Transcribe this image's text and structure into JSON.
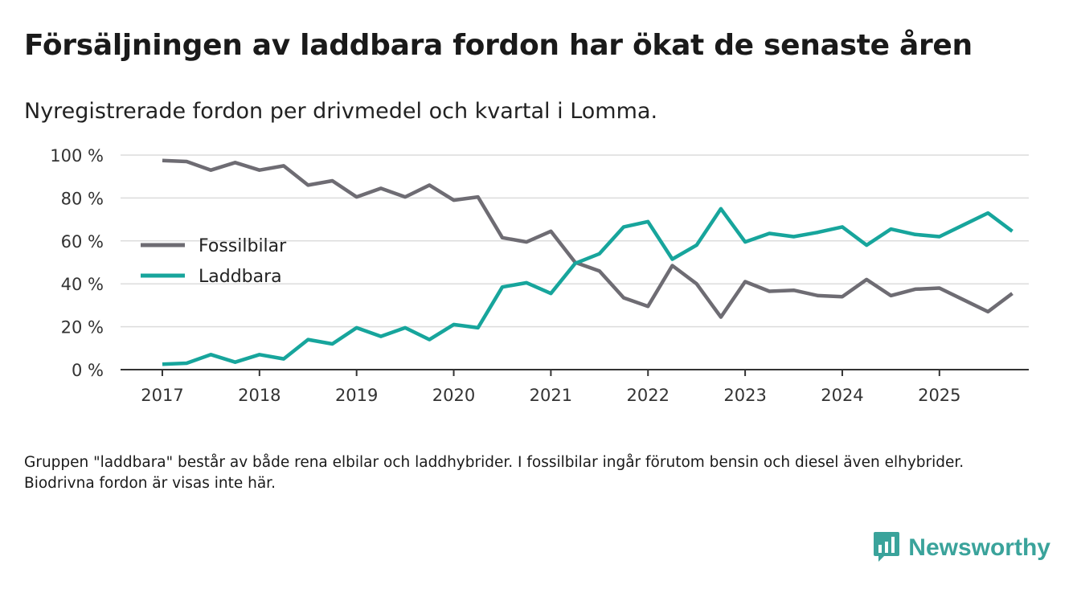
{
  "title": "Försäljningen av laddbara fordon har ökat de senaste åren",
  "subtitle": "Nyregistrerade fordon per drivmedel och kvartal i Lomma.",
  "footnote": "Gruppen \"laddbara\" består av både rena elbilar och laddhybrider. I fossilbilar ingår förutom bensin och diesel även elhybrider. Biodrivna fordon är visas inte här.",
  "brand": {
    "name": "Newsworthy",
    "icon": "bar-chart-icon"
  },
  "colors": {
    "fossil": "#6e6c73",
    "laddbara": "#17a59c",
    "grid": "#dcdcdc",
    "axis": "#333333"
  },
  "chart_data": {
    "type": "line",
    "title": "Försäljningen av laddbara fordon har ökat de senaste åren",
    "subtitle": "Nyregistrerade fordon per drivmedel och kvartal i Lomma.",
    "xlabel": "",
    "ylabel": "",
    "x": [
      2017.0,
      2017.25,
      2017.5,
      2017.75,
      2018.0,
      2018.25,
      2018.5,
      2018.75,
      2019.0,
      2019.25,
      2019.5,
      2019.75,
      2020.0,
      2020.25,
      2020.5,
      2020.75,
      2021.0,
      2021.25,
      2021.5,
      2021.75,
      2022.0,
      2022.25,
      2022.5,
      2022.75,
      2023.0,
      2023.25,
      2023.5,
      2023.75,
      2024.0,
      2024.25,
      2024.5,
      2024.75,
      2025.0,
      2025.25,
      2025.5,
      2025.75
    ],
    "xlim": [
      2016.57,
      2025.92
    ],
    "x_ticks": [
      2017,
      2018,
      2019,
      2020,
      2021,
      2022,
      2023,
      2024,
      2025
    ],
    "x_tick_labels": [
      "2017",
      "2018",
      "2019",
      "2020",
      "2021",
      "2022",
      "2023",
      "2024",
      "2025"
    ],
    "ylim": [
      0,
      100
    ],
    "y_ticks": [
      0,
      20,
      40,
      60,
      80,
      100
    ],
    "y_tick_labels": [
      "0 %",
      "20 %",
      "40 %",
      "60 %",
      "80 %",
      "100 %"
    ],
    "grid": true,
    "legend_position": "left-middle",
    "series": [
      {
        "name": "Fossilbilar",
        "values": [
          97.5,
          97,
          93,
          96.5,
          93,
          95,
          86,
          88,
          80.5,
          84.5,
          80.5,
          86,
          79,
          80.5,
          61.5,
          59.5,
          64.5,
          50,
          46,
          33.5,
          29.5,
          48.5,
          40,
          24.5,
          41,
          36.5,
          37,
          34.5,
          34,
          42,
          34.5,
          37.5,
          38,
          32.5,
          27,
          35.5
        ]
      },
      {
        "name": "Laddbara",
        "values": [
          2.5,
          3,
          7,
          3.5,
          7,
          5,
          14,
          12,
          19.5,
          15.5,
          19.5,
          14,
          21,
          19.5,
          38.5,
          40.5,
          35.5,
          49.5,
          54,
          66.5,
          69,
          51.5,
          58,
          75,
          59.5,
          63.5,
          62,
          64,
          66.5,
          58,
          65.5,
          63,
          62,
          67.5,
          73,
          64.5
        ]
      }
    ]
  }
}
